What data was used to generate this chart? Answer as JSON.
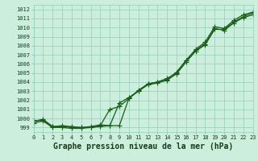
{
  "xlabel": "Graphe pression niveau de la mer (hPa)",
  "xlim": [
    0,
    23
  ],
  "ylim": [
    998.5,
    1012.5
  ],
  "yticks": [
    999,
    1000,
    1001,
    1002,
    1003,
    1004,
    1005,
    1006,
    1007,
    1008,
    1009,
    1010,
    1011,
    1012
  ],
  "xticks": [
    0,
    1,
    2,
    3,
    4,
    5,
    6,
    7,
    8,
    9,
    10,
    11,
    12,
    13,
    14,
    15,
    16,
    17,
    18,
    19,
    20,
    21,
    22,
    23
  ],
  "bg_color": "#cceedd",
  "grid_color": "#99ccbb",
  "line_color": "#1a5c1a",
  "line1_x": [
    0,
    1,
    2,
    3,
    4,
    5,
    6,
    7,
    8,
    9,
    10,
    11,
    12,
    13,
    14,
    15,
    16,
    17,
    18,
    19,
    20,
    21,
    22,
    23
  ],
  "line1_y": [
    999.7,
    999.9,
    999.1,
    999.2,
    999.1,
    999.0,
    999.1,
    999.3,
    999.2,
    999.2,
    1002.2,
    1003.1,
    1003.8,
    1004.0,
    1004.4,
    1005.0,
    1006.4,
    1007.5,
    1008.2,
    1009.9,
    1009.7,
    1010.5,
    1011.1,
    1011.4
  ],
  "line2_x": [
    0,
    1,
    2,
    3,
    4,
    5,
    6,
    7,
    8,
    9,
    10,
    11,
    12,
    13,
    14,
    15,
    16,
    17,
    18,
    19,
    20,
    21,
    22,
    23
  ],
  "line2_y": [
    999.7,
    999.8,
    999.1,
    999.1,
    999.0,
    999.0,
    999.0,
    999.2,
    1001.0,
    1001.3,
    1002.2,
    1003.0,
    1003.7,
    1003.9,
    1004.2,
    1004.9,
    1006.2,
    1007.4,
    1008.1,
    1009.8,
    1009.8,
    1010.6,
    1011.2,
    1011.6
  ],
  "line3_x": [
    0,
    1,
    2,
    3,
    4,
    5,
    6,
    7,
    8,
    9,
    10,
    11,
    12,
    13,
    14,
    15,
    16,
    17,
    18,
    19,
    20,
    21,
    22,
    23
  ],
  "line3_y": [
    999.5,
    999.7,
    999.0,
    999.0,
    998.9,
    998.9,
    999.0,
    999.1,
    999.2,
    1001.7,
    1002.3,
    1003.0,
    1003.8,
    1004.0,
    1004.3,
    1005.1,
    1006.4,
    1007.6,
    1008.4,
    1010.1,
    1009.9,
    1010.8,
    1011.4,
    1011.7
  ],
  "marker": "+",
  "markersize": 4,
  "linewidth": 0.9,
  "xlabel_fontsize": 7,
  "tick_fontsize": 5
}
